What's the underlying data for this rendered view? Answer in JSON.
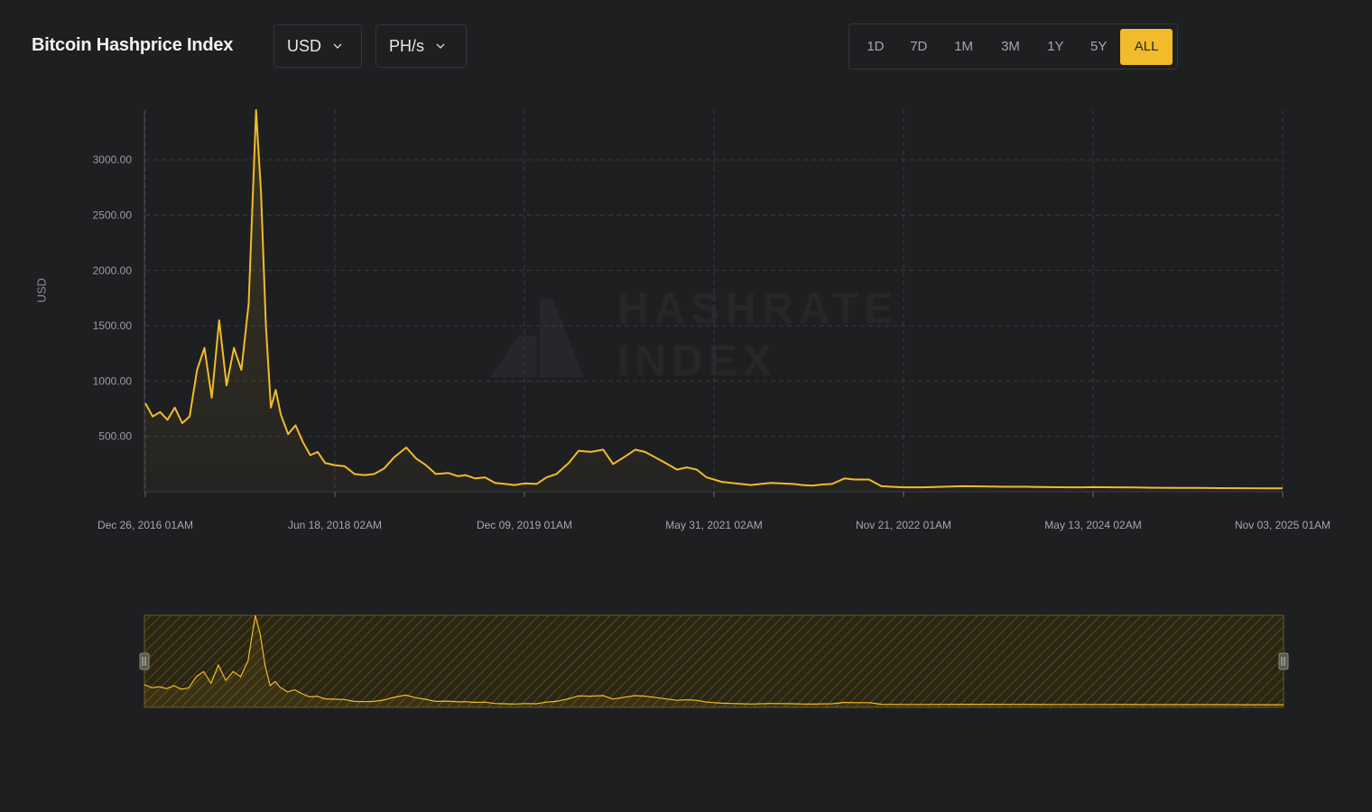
{
  "header": {
    "title": "Bitcoin Hashprice Index",
    "currency_label": "USD",
    "unit_label": "PH/s",
    "ranges": [
      "1D",
      "7D",
      "1M",
      "3M",
      "1Y",
      "5Y",
      "ALL"
    ],
    "active_range": "ALL"
  },
  "watermark": {
    "line1": "HASHRATE",
    "line2": "INDEX"
  },
  "colors": {
    "accent": "#f1bb2b",
    "background": "#1e1f21",
    "grid": "#3a3b3e"
  },
  "icons": {
    "dropdown": "chevron-down-icon",
    "logo": "hashrate-index-logo",
    "handle": "drag-handle-icon"
  },
  "chart_data": {
    "type": "area",
    "ylabel": "USD",
    "ylim": [
      0,
      3450
    ],
    "yticks": [
      500,
      1000,
      1500,
      2000,
      2500,
      3000
    ],
    "ytick_labels": [
      "500.00",
      "1000.00",
      "1500.00",
      "2000.00",
      "2500.00",
      "3000.00"
    ],
    "xtick_labels": [
      "Dec 26, 2016 01AM",
      "Jun 18, 2018 02AM",
      "Dec 09, 2019 01AM",
      "May 31, 2021 02AM",
      "Nov 21, 2022 01AM",
      "May 13, 2024 02AM",
      "Nov 03, 2025 01AM"
    ],
    "xtick_values": [
      "2016-12-26",
      "2018-06-18",
      "2019-12-09",
      "2021-05-31",
      "2022-11-21",
      "2024-05-13",
      "2025-11-03"
    ],
    "xlim": [
      "2016-12-26",
      "2025-11-03"
    ],
    "grid": true,
    "series": [
      {
        "x": [
          "2016-12-26",
          "2017-01-16",
          "2017-02-06",
          "2017-02-27",
          "2017-03-20",
          "2017-04-10",
          "2017-05-01",
          "2017-05-22",
          "2017-06-12",
          "2017-07-03",
          "2017-07-24",
          "2017-08-14",
          "2017-09-04",
          "2017-09-25",
          "2017-10-16",
          "2017-11-06",
          "2017-11-20",
          "2017-12-04",
          "2017-12-18",
          "2018-01-01",
          "2018-01-15",
          "2018-02-05",
          "2018-02-26",
          "2018-03-19",
          "2018-04-09",
          "2018-04-30",
          "2018-05-21",
          "2018-06-18",
          "2018-07-16",
          "2018-08-13",
          "2018-09-10",
          "2018-10-08",
          "2018-11-05",
          "2018-12-03",
          "2019-01-07",
          "2019-02-04",
          "2019-03-04",
          "2019-04-01",
          "2019-05-06",
          "2019-06-03",
          "2019-06-24",
          "2019-07-22",
          "2019-08-19",
          "2019-09-16",
          "2019-10-14",
          "2019-11-11",
          "2019-12-09",
          "2020-01-13",
          "2020-02-10",
          "2020-03-09",
          "2020-04-13",
          "2020-05-11",
          "2020-06-15",
          "2020-07-20",
          "2020-08-17",
          "2020-09-21",
          "2020-10-19",
          "2020-11-16",
          "2020-12-21",
          "2021-01-18",
          "2021-02-15",
          "2021-03-15",
          "2021-04-12",
          "2021-05-10",
          "2021-05-31",
          "2021-06-21",
          "2021-07-19",
          "2021-08-16",
          "2021-09-13",
          "2021-10-11",
          "2021-11-08",
          "2021-12-06",
          "2022-01-10",
          "2022-02-07",
          "2022-03-07",
          "2022-04-04",
          "2022-05-02",
          "2022-06-06",
          "2022-07-04",
          "2022-08-15",
          "2022-09-19",
          "2022-10-17",
          "2022-11-21",
          "2023-01-16",
          "2023-03-13",
          "2023-05-08",
          "2023-07-03",
          "2023-09-04",
          "2023-11-06",
          "2024-01-08",
          "2024-03-04",
          "2024-04-15",
          "2024-05-13",
          "2024-07-08",
          "2024-09-02",
          "2024-11-04",
          "2025-01-06",
          "2025-03-03",
          "2025-05-05",
          "2025-07-07",
          "2025-09-01",
          "2025-11-03"
        ],
        "y": [
          800,
          680,
          720,
          650,
          760,
          620,
          680,
          1100,
          1300,
          850,
          1550,
          960,
          1300,
          1100,
          1700,
          3450,
          2700,
          1500,
          760,
          920,
          700,
          520,
          600,
          450,
          330,
          360,
          260,
          240,
          230,
          160,
          150,
          160,
          210,
          310,
          400,
          300,
          240,
          160,
          170,
          140,
          150,
          120,
          130,
          80,
          70,
          60,
          75,
          70,
          130,
          160,
          260,
          370,
          360,
          380,
          250,
          320,
          380,
          360,
          300,
          250,
          200,
          220,
          200,
          130,
          110,
          90,
          80,
          70,
          60,
          70,
          80,
          75,
          70,
          60,
          55,
          65,
          70,
          120,
          110,
          110,
          50,
          45,
          40,
          40,
          45,
          50,
          48,
          45,
          45,
          42,
          40,
          40,
          42,
          40,
          38,
          36,
          35,
          34,
          33,
          32,
          30,
          30
        ]
      }
    ]
  }
}
